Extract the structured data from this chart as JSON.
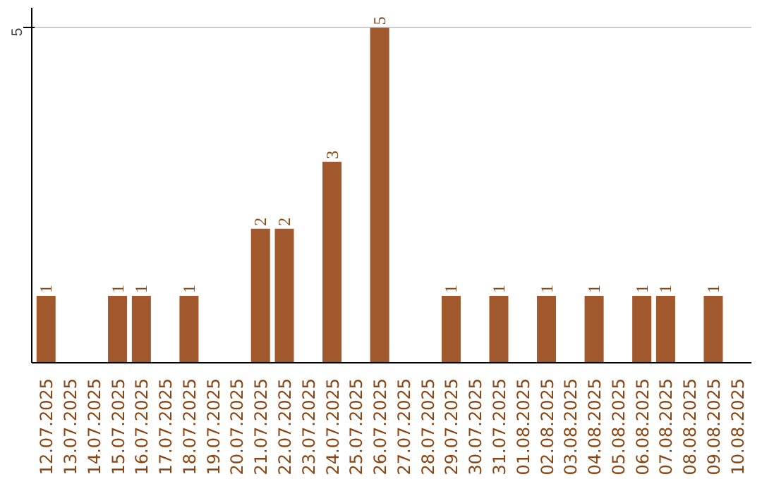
{
  "chart_data": {
    "type": "bar",
    "categories": [
      "12.07.2025",
      "13.07.2025",
      "14.07.2025",
      "15.07.2025",
      "16.07.2025",
      "17.07.2025",
      "18.07.2025",
      "19.07.2025",
      "20.07.2025",
      "21.07.2025",
      "22.07.2025",
      "23.07.2025",
      "24.07.2025",
      "25.07.2025",
      "26.07.2025",
      "27.07.2025",
      "28.07.2025",
      "29.07.2025",
      "30.07.2025",
      "31.07.2025",
      "01.08.2025",
      "02.08.2025",
      "03.08.2025",
      "04.08.2025",
      "05.08.2025",
      "06.08.2025",
      "07.08.2025",
      "08.08.2025",
      "09.08.2025",
      "10.08.2025"
    ],
    "values": [
      1,
      0,
      0,
      1,
      1,
      0,
      1,
      0,
      0,
      2,
      2,
      0,
      3,
      0,
      5,
      0,
      0,
      1,
      0,
      1,
      0,
      1,
      0,
      1,
      0,
      1,
      1,
      0,
      1,
      0
    ],
    "value_labels": [
      "1",
      null,
      null,
      "1",
      "1",
      null,
      "1",
      null,
      null,
      "2",
      "2",
      null,
      "3",
      null,
      "5",
      null,
      null,
      "1",
      null,
      "1",
      null,
      "1",
      null,
      "1",
      null,
      "1",
      "1",
      null,
      "1",
      null
    ],
    "color": "#a0582c",
    "ylim": [
      0,
      5.3
    ],
    "yticks": [
      5
    ],
    "grid": "y"
  }
}
